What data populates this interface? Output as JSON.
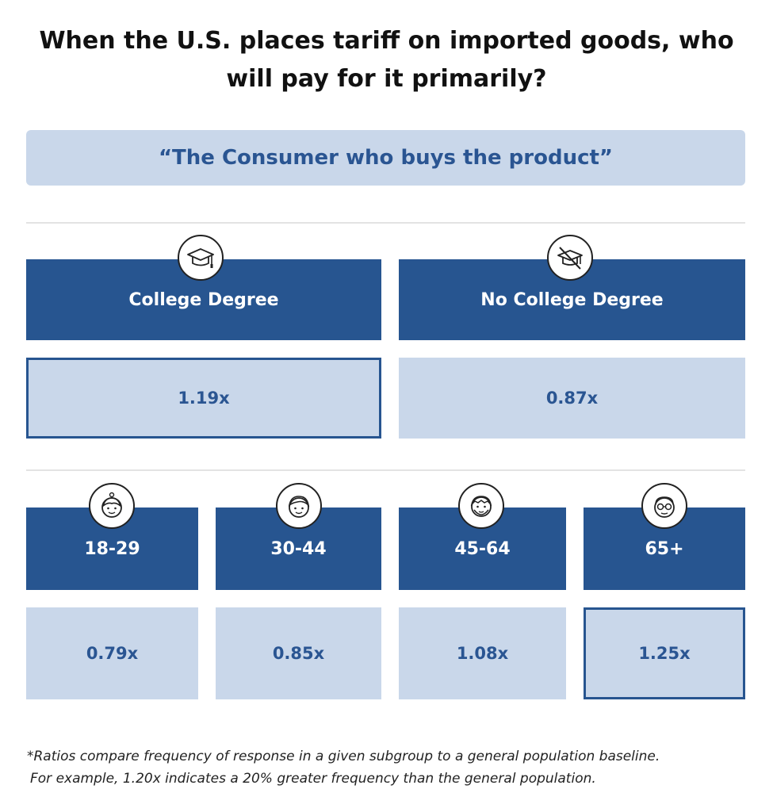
{
  "title": {
    "line1": "When the U.S. places tariff on imported goods, who",
    "line2": "will pay for it primarily?"
  },
  "answer": "“The Consumer who buys the product”",
  "education": [
    {
      "label": "College Degree",
      "value": "1.19x",
      "icon": "graduation-cap-icon",
      "highlighted": true
    },
    {
      "label": "No College Degree",
      "value": "0.87x",
      "icon": "no-graduation-cap-icon",
      "highlighted": false
    }
  ],
  "age": [
    {
      "label": "18-29",
      "value": "0.79x",
      "icon": "young-person-face-icon",
      "highlighted": false
    },
    {
      "label": "30-44",
      "value": "0.85x",
      "icon": "adult-face-icon",
      "highlighted": false
    },
    {
      "label": "45-64",
      "value": "1.08x",
      "icon": "middle-aged-face-icon",
      "highlighted": false
    },
    {
      "label": "65+",
      "value": "1.25x",
      "icon": "elderly-face-icon",
      "highlighted": true
    }
  ],
  "footnote": {
    "line1": "*Ratios compare frequency of response in a given subgroup to a general population baseline.",
    "line2": "For example, 1.20x indicates a 20% greater frequency than the general population."
  },
  "colors": {
    "header_blue": "#275590",
    "value_light_blue": "#c9d7ea",
    "text_blue": "#2a5592"
  }
}
